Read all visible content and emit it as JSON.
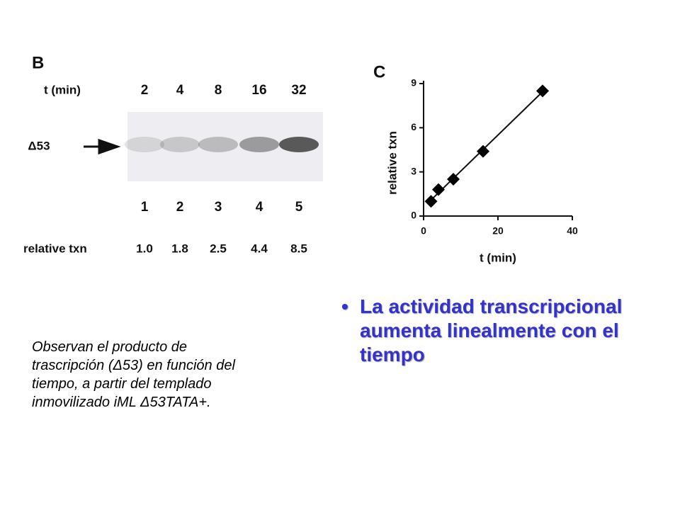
{
  "gel": {
    "label": "B",
    "time_header": "t (min)",
    "times": [
      "2",
      "4",
      "8",
      "16",
      "32"
    ],
    "band_label": "Δ53",
    "lanes": [
      "1",
      "2",
      "3",
      "4",
      "5"
    ],
    "relative_header": "relative txn",
    "relative_values": [
      "1.0",
      "1.8",
      "2.5",
      "4.4",
      "8.5"
    ]
  },
  "chart_data": {
    "type": "scatter",
    "panel_label": "C",
    "x_label": "t (min)",
    "y_label": "relative txn",
    "x": [
      2,
      4,
      8,
      16,
      32
    ],
    "values": [
      1.0,
      1.8,
      2.5,
      4.4,
      8.5
    ],
    "color": "#000000",
    "xlim": [
      0,
      40
    ],
    "ylim": [
      0,
      9
    ],
    "xticks": [
      0,
      20,
      40
    ],
    "yticks": [
      0,
      3,
      6,
      9
    ],
    "fit_line": true
  },
  "caption": [
    "Observan el producto de",
    "trascripción (Δ53) en función del",
    "tiempo, a partir del templado",
    "inmovilizado iML Δ53TATA+."
  ],
  "bullet": "La actividad transcripcional aumenta linealmente con el tiempo"
}
